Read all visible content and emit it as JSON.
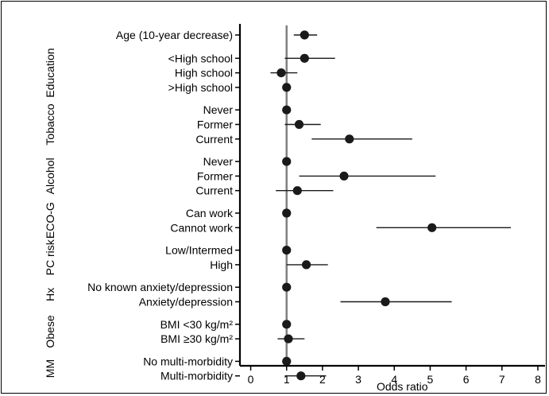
{
  "chart_data": {
    "type": "forest",
    "xlabel": "Odds ratio",
    "xlim": [
      -0.3,
      8.2
    ],
    "xticks": [
      0,
      1,
      2,
      3,
      4,
      5,
      6,
      7,
      8
    ],
    "reference_line": 1,
    "rows": [
      {
        "label": "Age (10-year decrease)",
        "or": 1.5,
        "lo": 1.2,
        "hi": 1.85
      },
      {
        "label": "<High school",
        "or": 1.5,
        "lo": 0.95,
        "hi": 2.35
      },
      {
        "label": "High school",
        "or": 0.85,
        "lo": 0.55,
        "hi": 1.3
      },
      {
        "label": ">High school",
        "or": 1.0,
        "lo": 1.0,
        "hi": 1.0
      },
      {
        "label": "Never",
        "or": 1.0,
        "lo": 1.0,
        "hi": 1.0
      },
      {
        "label": "Former",
        "or": 1.35,
        "lo": 0.95,
        "hi": 1.95
      },
      {
        "label": "Current",
        "or": 2.75,
        "lo": 1.7,
        "hi": 4.5
      },
      {
        "label": "Never",
        "or": 1.0,
        "lo": 1.0,
        "hi": 1.0
      },
      {
        "label": "Former",
        "or": 2.6,
        "lo": 1.35,
        "hi": 5.15
      },
      {
        "label": "Current",
        "or": 1.3,
        "lo": 0.7,
        "hi": 2.3
      },
      {
        "label": "Can work",
        "or": 1.0,
        "lo": 1.0,
        "hi": 1.0
      },
      {
        "label": "Cannot work",
        "or": 5.05,
        "lo": 3.5,
        "hi": 7.25
      },
      {
        "label": "Low/Intermed",
        "or": 1.0,
        "lo": 1.0,
        "hi": 1.0
      },
      {
        "label": "High",
        "or": 1.55,
        "lo": 1.0,
        "hi": 2.15
      },
      {
        "label": "No known anxiety/depression",
        "or": 1.0,
        "lo": 1.0,
        "hi": 1.0
      },
      {
        "label": "Anxiety/depression",
        "or": 3.75,
        "lo": 2.5,
        "hi": 5.6
      },
      {
        "label": "BMI <30 kg/m²",
        "or": 1.0,
        "lo": 1.0,
        "hi": 1.0
      },
      {
        "label": "BMI ≥30 kg/m²",
        "or": 1.05,
        "lo": 0.75,
        "hi": 1.5
      },
      {
        "label": "No multi-morbidity",
        "or": 1.0,
        "lo": 1.0,
        "hi": 1.0
      },
      {
        "label": "Multi-morbidity",
        "or": 1.4,
        "lo": 0.95,
        "hi": 2.1
      }
    ],
    "groups": [
      {
        "label": "Education",
        "rows": [
          1,
          3
        ]
      },
      {
        "label": "Tobacco",
        "rows": [
          4,
          6
        ]
      },
      {
        "label": "Alcohol",
        "rows": [
          7,
          9
        ]
      },
      {
        "label": "ECO-G",
        "rows": [
          10,
          11
        ]
      },
      {
        "label": "PC risk",
        "rows": [
          12,
          13
        ]
      },
      {
        "label": "Hx",
        "rows": [
          14,
          15
        ]
      },
      {
        "label": "Obese",
        "rows": [
          16,
          17
        ]
      },
      {
        "label": "MM",
        "rows": [
          18,
          19
        ]
      }
    ],
    "colors": {
      "points": "#1a1a1a",
      "ci": "#1a1a1a",
      "reference_line": "#808080",
      "axes": "#000000"
    }
  }
}
